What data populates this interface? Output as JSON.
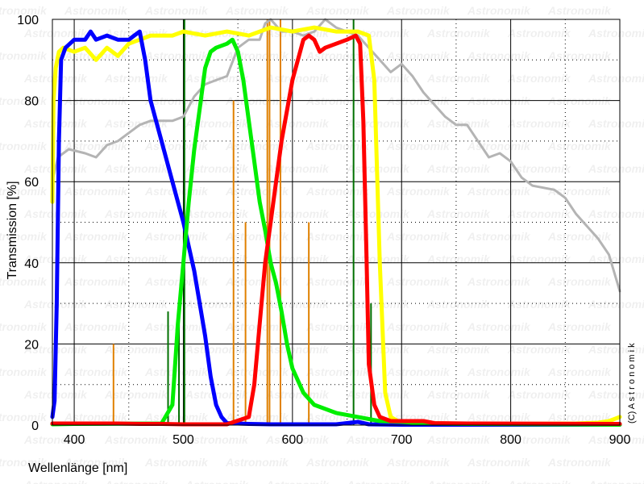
{
  "chart_data": {
    "type": "line",
    "xlabel": "Wellenlänge [nm]",
    "ylabel": "Transmission [%]",
    "xlim": [
      380,
      900
    ],
    "ylim": [
      0,
      100
    ],
    "x_ticks": [
      400,
      500,
      600,
      700,
      800,
      900
    ],
    "y_ticks": [
      0,
      20,
      40,
      60,
      80,
      100
    ],
    "grid": true,
    "watermark": "Astronomik",
    "copyright": "(C)  A s t r o n o m i k",
    "series": [
      {
        "color": "#b4b4b4",
        "points": [
          [
            380,
            60
          ],
          [
            385,
            66
          ],
          [
            395,
            68
          ],
          [
            410,
            67
          ],
          [
            420,
            66
          ],
          [
            430,
            69
          ],
          [
            440,
            70
          ],
          [
            450,
            72
          ],
          [
            460,
            74
          ],
          [
            470,
            75
          ],
          [
            480,
            75
          ],
          [
            490,
            75
          ],
          [
            500,
            76
          ],
          [
            510,
            81
          ],
          [
            520,
            84
          ],
          [
            530,
            85
          ],
          [
            540,
            86
          ],
          [
            550,
            93
          ],
          [
            560,
            95
          ],
          [
            570,
            95
          ],
          [
            575,
            99
          ],
          [
            580,
            100
          ],
          [
            590,
            97
          ],
          [
            600,
            97
          ],
          [
            610,
            96
          ],
          [
            620,
            97
          ],
          [
            630,
            100
          ],
          [
            640,
            98
          ],
          [
            650,
            97
          ],
          [
            660,
            96
          ],
          [
            670,
            93
          ],
          [
            680,
            90
          ],
          [
            690,
            87
          ],
          [
            700,
            89
          ],
          [
            710,
            86
          ],
          [
            720,
            82
          ],
          [
            730,
            79
          ],
          [
            740,
            76
          ],
          [
            750,
            74
          ],
          [
            760,
            74
          ],
          [
            770,
            70
          ],
          [
            780,
            66
          ],
          [
            790,
            67
          ],
          [
            800,
            65
          ],
          [
            810,
            61
          ],
          [
            820,
            59
          ],
          [
            840,
            58
          ],
          [
            850,
            56
          ],
          [
            860,
            52
          ],
          [
            880,
            46
          ],
          [
            890,
            42
          ],
          [
            900,
            33
          ]
        ]
      },
      {
        "color": "#ffff00",
        "points": [
          [
            380,
            55
          ],
          [
            381,
            80
          ],
          [
            383,
            88
          ],
          [
            386,
            92
          ],
          [
            390,
            93
          ],
          [
            400,
            92
          ],
          [
            410,
            93
          ],
          [
            420,
            90
          ],
          [
            430,
            93
          ],
          [
            440,
            91
          ],
          [
            450,
            94
          ],
          [
            460,
            95
          ],
          [
            470,
            96
          ],
          [
            480,
            96
          ],
          [
            490,
            96
          ],
          [
            500,
            97
          ],
          [
            520,
            96
          ],
          [
            540,
            97
          ],
          [
            560,
            96
          ],
          [
            580,
            98
          ],
          [
            600,
            97
          ],
          [
            620,
            98
          ],
          [
            640,
            97
          ],
          [
            660,
            97
          ],
          [
            670,
            96
          ],
          [
            675,
            85
          ],
          [
            680,
            40
          ],
          [
            685,
            8
          ],
          [
            690,
            2
          ],
          [
            700,
            0.5
          ],
          [
            800,
            0.3
          ],
          [
            860,
            0.4
          ],
          [
            880,
            0.6
          ],
          [
            890,
            1
          ],
          [
            900,
            2
          ]
        ]
      },
      {
        "color": "#0000ff",
        "points": [
          [
            380,
            2
          ],
          [
            382,
            6
          ],
          [
            384,
            30
          ],
          [
            386,
            70
          ],
          [
            388,
            90
          ],
          [
            392,
            93
          ],
          [
            400,
            95
          ],
          [
            410,
            95
          ],
          [
            415,
            97
          ],
          [
            420,
            95
          ],
          [
            430,
            96
          ],
          [
            440,
            95
          ],
          [
            450,
            95
          ],
          [
            455,
            96
          ],
          [
            460,
            97
          ],
          [
            465,
            90
          ],
          [
            470,
            80
          ],
          [
            480,
            70
          ],
          [
            490,
            60
          ],
          [
            500,
            50
          ],
          [
            510,
            38
          ],
          [
            520,
            22
          ],
          [
            525,
            12
          ],
          [
            530,
            5
          ],
          [
            535,
            2
          ],
          [
            540,
            0.5
          ],
          [
            560,
            0.3
          ],
          [
            580,
            0.2
          ],
          [
            640,
            0.2
          ],
          [
            660,
            0.8
          ],
          [
            670,
            0.2
          ],
          [
            700,
            0.1
          ],
          [
            900,
            0.1
          ]
        ]
      },
      {
        "color": "#00ee00",
        "points": [
          [
            380,
            0.2
          ],
          [
            400,
            0.3
          ],
          [
            480,
            0.4
          ],
          [
            490,
            5
          ],
          [
            495,
            25
          ],
          [
            500,
            40
          ],
          [
            505,
            55
          ],
          [
            510,
            68
          ],
          [
            515,
            78
          ],
          [
            520,
            88
          ],
          [
            525,
            92
          ],
          [
            530,
            93
          ],
          [
            540,
            94
          ],
          [
            545,
            95
          ],
          [
            550,
            92
          ],
          [
            555,
            85
          ],
          [
            560,
            75
          ],
          [
            565,
            65
          ],
          [
            570,
            55
          ],
          [
            575,
            48
          ],
          [
            580,
            40
          ],
          [
            585,
            35
          ],
          [
            590,
            28
          ],
          [
            595,
            20
          ],
          [
            600,
            14
          ],
          [
            610,
            8
          ],
          [
            620,
            5
          ],
          [
            640,
            3
          ],
          [
            660,
            2
          ],
          [
            680,
            1
          ],
          [
            700,
            0.8
          ],
          [
            720,
            0.4
          ],
          [
            760,
            0.3
          ],
          [
            900,
            0.1
          ]
        ]
      },
      {
        "color": "#ff0000",
        "points": [
          [
            380,
            0.4
          ],
          [
            420,
            0.4
          ],
          [
            440,
            0.4
          ],
          [
            460,
            0.3
          ],
          [
            480,
            0.3
          ],
          [
            500,
            0.2
          ],
          [
            540,
            0.2
          ],
          [
            560,
            2
          ],
          [
            565,
            10
          ],
          [
            570,
            25
          ],
          [
            575,
            40
          ],
          [
            580,
            50
          ],
          [
            590,
            70
          ],
          [
            600,
            85
          ],
          [
            610,
            95
          ],
          [
            615,
            96
          ],
          [
            620,
            95
          ],
          [
            625,
            92
          ],
          [
            630,
            93
          ],
          [
            640,
            94
          ],
          [
            650,
            95
          ],
          [
            658,
            96
          ],
          [
            662,
            94
          ],
          [
            665,
            75
          ],
          [
            668,
            40
          ],
          [
            670,
            15
          ],
          [
            675,
            5
          ],
          [
            680,
            2
          ],
          [
            690,
            1
          ],
          [
            700,
            1
          ],
          [
            710,
            1
          ],
          [
            720,
            1
          ],
          [
            730,
            0.5
          ],
          [
            760,
            0.4
          ],
          [
            900,
            0.3
          ]
        ]
      }
    ],
    "emission_lines": [
      {
        "color": "#e08000",
        "lines": [
          [
            436,
            20
          ],
          [
            546,
            80
          ],
          [
            557,
            50
          ],
          [
            577,
            100
          ],
          [
            579,
            100
          ],
          [
            589,
            100
          ],
          [
            615,
            50
          ]
        ]
      },
      {
        "color": "#007000",
        "lines": [
          [
            486,
            28
          ],
          [
            496,
            28
          ],
          [
            501,
            100
          ],
          [
            656,
            100
          ],
          [
            672,
            30
          ]
        ]
      }
    ]
  }
}
